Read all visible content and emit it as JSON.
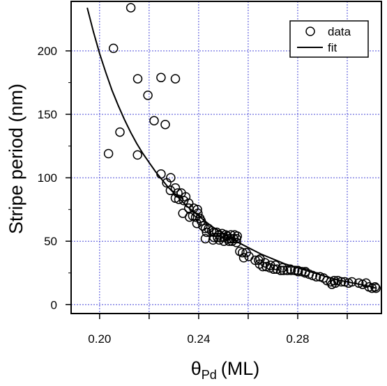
{
  "chart_data": {
    "type": "scatter",
    "ylabel": "Stripe period (nm)",
    "xlabel": {
      "symbol": "θ",
      "subscript": "Pd",
      "unit": "(ML)"
    },
    "xlim": [
      0.1885,
      0.3138
    ],
    "ylim": [
      -7,
      239
    ],
    "x_ticks": [
      0.2,
      0.24,
      0.28
    ],
    "x_tick_labels": [
      "0.20",
      "0.24",
      "0.28"
    ],
    "x_minor_ticks": [
      0.22,
      0.26,
      0.3
    ],
    "y_ticks": [
      0,
      50,
      100,
      150,
      200
    ],
    "y_tick_labels": [
      "0",
      "50",
      "100",
      "150",
      "200"
    ],
    "grid": true,
    "grid_color": "#4a4ad8",
    "legend": {
      "position": "top-right",
      "entries": [
        "data",
        "fit"
      ]
    },
    "series": [
      {
        "name": "data",
        "marker": "open-circle",
        "points": [
          [
            0.2126,
            234
          ],
          [
            0.2056,
            202
          ],
          [
            0.2154,
            178
          ],
          [
            0.2248,
            179
          ],
          [
            0.2306,
            178
          ],
          [
            0.2195,
            165
          ],
          [
            0.222,
            145
          ],
          [
            0.2265,
            142
          ],
          [
            0.2082,
            136
          ],
          [
            0.2036,
            119
          ],
          [
            0.2153,
            118
          ],
          [
            0.2248,
            103
          ],
          [
            0.2287,
            100
          ],
          [
            0.2271,
            96
          ],
          [
            0.2306,
            92
          ],
          [
            0.2286,
            90
          ],
          [
            0.2316,
            88
          ],
          [
            0.233,
            88
          ],
          [
            0.2348,
            85
          ],
          [
            0.2306,
            84
          ],
          [
            0.232,
            83
          ],
          [
            0.234,
            82
          ],
          [
            0.236,
            80
          ],
          [
            0.236,
            76
          ],
          [
            0.238,
            76
          ],
          [
            0.2395,
            75
          ],
          [
            0.2336,
            72
          ],
          [
            0.2363,
            69
          ],
          [
            0.2376,
            70
          ],
          [
            0.2388,
            69
          ],
          [
            0.2397,
            72
          ],
          [
            0.2405,
            68
          ],
          [
            0.241,
            66
          ],
          [
            0.2393,
            64
          ],
          [
            0.2417,
            62
          ],
          [
            0.2427,
            60
          ],
          [
            0.244,
            60
          ],
          [
            0.2452,
            58
          ],
          [
            0.2432,
            57
          ],
          [
            0.2461,
            57
          ],
          [
            0.2473,
            57
          ],
          [
            0.2483,
            55
          ],
          [
            0.2495,
            56
          ],
          [
            0.2509,
            55
          ],
          [
            0.2516,
            54
          ],
          [
            0.253,
            55
          ],
          [
            0.2545,
            55
          ],
          [
            0.2556,
            54
          ],
          [
            0.2462,
            53
          ],
          [
            0.2476,
            53
          ],
          [
            0.2488,
            53
          ],
          [
            0.2503,
            53
          ],
          [
            0.2517,
            52
          ],
          [
            0.2529,
            52
          ],
          [
            0.2541,
            52
          ],
          [
            0.2553,
            52
          ],
          [
            0.2427,
            52
          ],
          [
            0.2458,
            51
          ],
          [
            0.2483,
            51
          ],
          [
            0.2502,
            50
          ],
          [
            0.2523,
            50
          ],
          [
            0.2535,
            50
          ],
          [
            0.2553,
            49
          ],
          [
            0.2566,
            42
          ],
          [
            0.2577,
            41
          ],
          [
            0.2592,
            41
          ],
          [
            0.2582,
            37
          ],
          [
            0.2603,
            38
          ],
          [
            0.2628,
            35
          ],
          [
            0.2642,
            35
          ],
          [
            0.2646,
            32
          ],
          [
            0.2659,
            30
          ],
          [
            0.2673,
            30
          ],
          [
            0.2688,
            29
          ],
          [
            0.2703,
            28
          ],
          [
            0.2716,
            28
          ],
          [
            0.2731,
            27
          ],
          [
            0.2743,
            27
          ],
          [
            0.2758,
            27
          ],
          [
            0.2773,
            27
          ],
          [
            0.2788,
            27
          ],
          [
            0.2802,
            26
          ],
          [
            0.2817,
            26
          ],
          [
            0.2831,
            26
          ],
          [
            0.2846,
            24
          ],
          [
            0.286,
            23
          ],
          [
            0.2875,
            22
          ],
          [
            0.289,
            22
          ],
          [
            0.2904,
            21
          ],
          [
            0.2918,
            19
          ],
          [
            0.2933,
            18
          ],
          [
            0.2947,
            19
          ],
          [
            0.2962,
            19
          ],
          [
            0.2976,
            18
          ],
          [
            0.299,
            18
          ],
          [
            0.3005,
            17
          ],
          [
            0.3019,
            18
          ],
          [
            0.3047,
            17
          ],
          [
            0.3062,
            16
          ],
          [
            0.3076,
            17
          ],
          [
            0.2938,
            16
          ],
          [
            0.2952,
            17
          ],
          [
            0.2648,
            36
          ],
          [
            0.2668,
            33
          ],
          [
            0.269,
            31
          ],
          [
            0.271,
            31
          ],
          [
            0.2738,
            29
          ],
          [
            0.277,
            28
          ],
          [
            0.28,
            27
          ],
          [
            0.283,
            25
          ],
          [
            0.3088,
            14
          ],
          [
            0.31,
            13
          ],
          [
            0.3112,
            14
          ],
          [
            0.3116,
            13
          ]
        ]
      },
      {
        "name": "fit",
        "type": "line",
        "x": [
          0.195,
          0.1975,
          0.2,
          0.2025,
          0.205,
          0.2075,
          0.21,
          0.2125,
          0.215,
          0.2175,
          0.22,
          0.2225,
          0.225,
          0.2275,
          0.23,
          0.2325,
          0.235,
          0.2375,
          0.24,
          0.2425,
          0.245,
          0.25,
          0.255,
          0.26,
          0.265,
          0.27,
          0.275,
          0.28,
          0.285,
          0.29,
          0.295,
          0.3,
          0.305,
          0.31,
          0.3115
        ],
        "y": [
          234,
          215,
          198,
          183,
          169,
          157,
          146,
          136,
          127,
          119,
          112,
          105,
          99,
          93,
          88,
          83,
          78,
          74,
          70,
          66,
          62,
          56,
          50,
          45,
          40,
          36,
          32,
          29,
          26,
          23,
          20,
          18,
          16,
          14,
          13
        ]
      }
    ]
  }
}
